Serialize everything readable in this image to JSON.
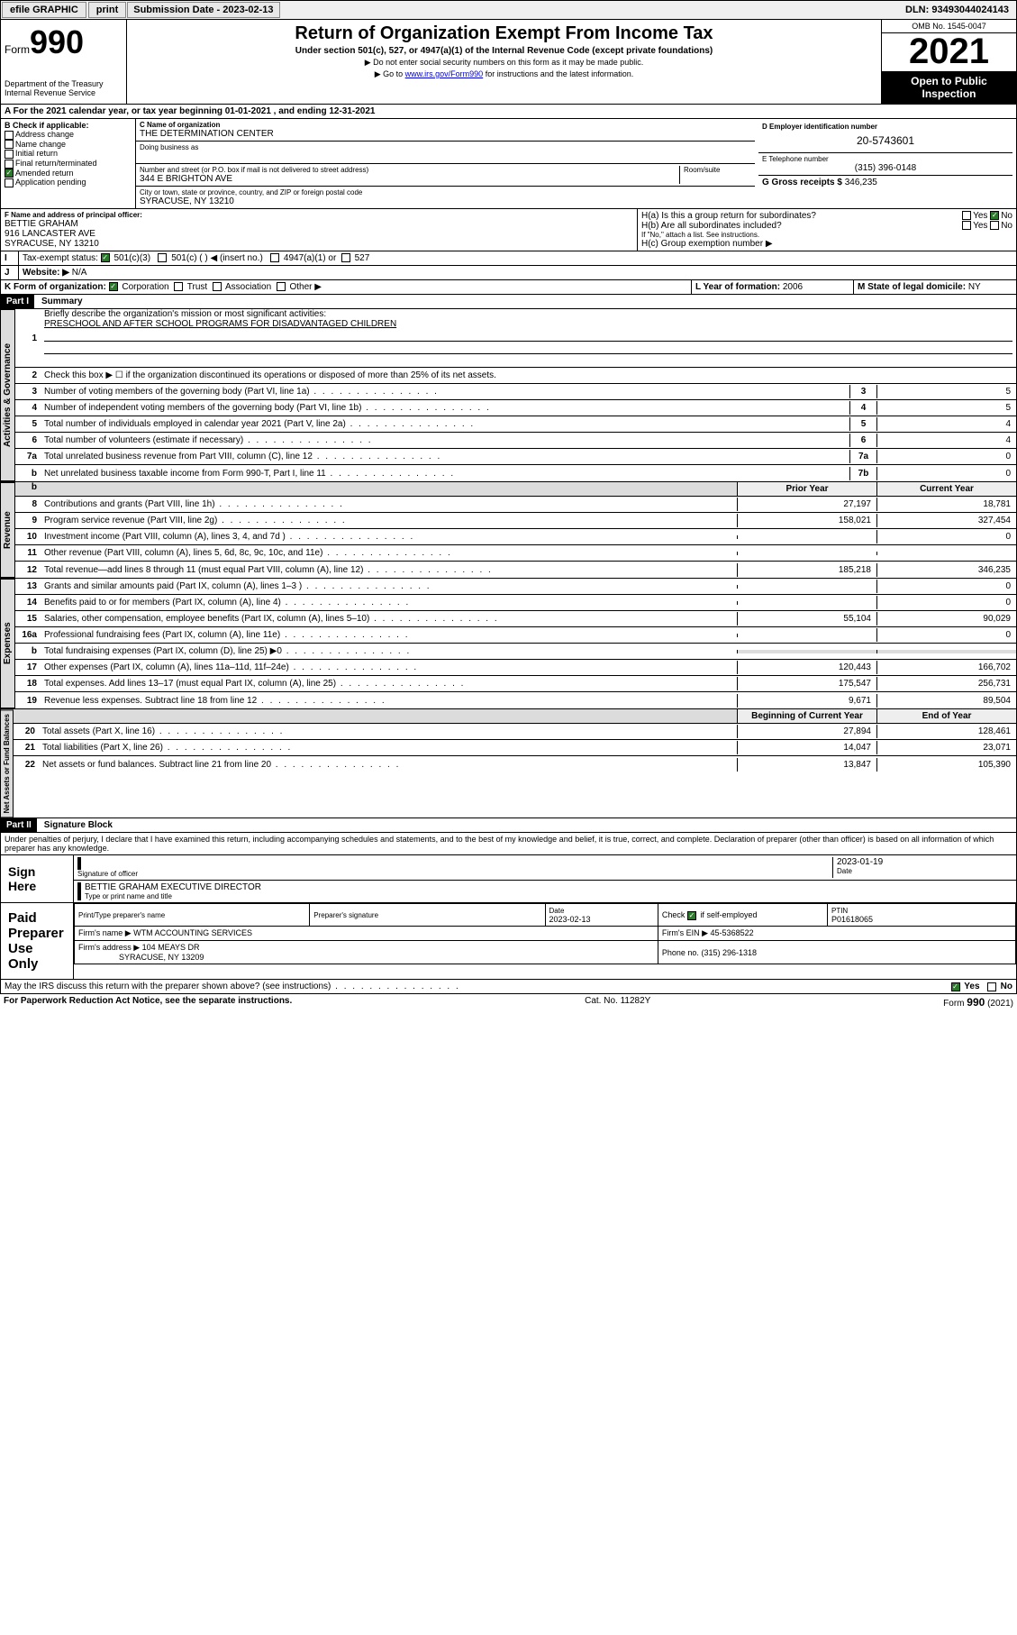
{
  "topbar": {
    "efile": "efile GRAPHIC",
    "print": "print",
    "subdate_label": "Submission Date - 2023-02-13",
    "dln": "DLN: 93493044024143"
  },
  "header": {
    "form_label": "Form",
    "form_number": "990",
    "title": "Return of Organization Exempt From Income Tax",
    "subtitle": "Under section 501(c), 527, or 4947(a)(1) of the Internal Revenue Code (except private foundations)",
    "note1": "▶ Do not enter social security numbers on this form as it may be made public.",
    "note2_pre": "▶ Go to ",
    "note2_link": "www.irs.gov/Form990",
    "note2_post": " for instructions and the latest information.",
    "dept": "Department of the Treasury",
    "irs": "Internal Revenue Service",
    "omb": "OMB No. 1545-0047",
    "year": "2021",
    "open_public": "Open to Public Inspection"
  },
  "section_a": {
    "text": "For the 2021 calendar year, or tax year beginning 01-01-2021   , and ending 12-31-2021",
    "label_a": "A"
  },
  "section_b": {
    "label": "B Check if applicable:",
    "items": [
      "Address change",
      "Name change",
      "Initial return",
      "Final return/terminated",
      "Amended return",
      "Application pending"
    ],
    "checked_idx": 4
  },
  "section_c": {
    "label": "C Name of organization",
    "org_name": "THE DETERMINATION CENTER",
    "dba_label": "Doing business as",
    "addr_label": "Number and street (or P.O. box if mail is not delivered to street address)",
    "room_label": "Room/suite",
    "addr": "344 E BRIGHTON AVE",
    "city_label": "City or town, state or province, country, and ZIP or foreign postal code",
    "city": "SYRACUSE, NY  13210"
  },
  "section_d": {
    "label": "D Employer identification number",
    "ein": "20-5743601"
  },
  "section_e": {
    "label": "E Telephone number",
    "phone": "(315) 396-0148"
  },
  "section_g": {
    "label": "G Gross receipts $",
    "amount": "346,235"
  },
  "section_f": {
    "label": "F Name and address of principal officer:",
    "name": "BETTIE GRAHAM",
    "addr1": "916 LANCASTER AVE",
    "addr2": "SYRACUSE, NY  13210"
  },
  "section_h": {
    "ha_label": "H(a)  Is this a group return for subordinates?",
    "hb_label": "H(b)  Are all subordinates included?",
    "hb_note": "If \"No,\" attach a list. See instructions.",
    "hc_label": "H(c)  Group exemption number ▶",
    "yes": "Yes",
    "no": "No"
  },
  "section_i": {
    "label": "I",
    "tax_label": "Tax-exempt status:",
    "opt1": "501(c)(3)",
    "opt2": "501(c) (   ) ◀ (insert no.)",
    "opt3": "4947(a)(1) or",
    "opt4": "527"
  },
  "section_j": {
    "label": "J",
    "web_label": "Website: ▶",
    "website": "N/A"
  },
  "section_k": {
    "label": "K Form of organization:",
    "opts": [
      "Corporation",
      "Trust",
      "Association",
      "Other ▶"
    ]
  },
  "section_l": {
    "label": "L Year of formation:",
    "year": "2006"
  },
  "section_m": {
    "label": "M State of legal domicile:",
    "state": "NY"
  },
  "part1": {
    "header": "Part I",
    "title": "Summary",
    "line1_label": "Briefly describe the organization's mission or most significant activities:",
    "mission": "PRESCHOOL AND AFTER SCHOOL PROGRAMS FOR DISADVANTAGED CHILDREN",
    "line2": "Check this box ▶ ☐  if the organization discontinued its operations or disposed of more than 25% of its net assets.",
    "lines_gov": [
      {
        "n": "3",
        "desc": "Number of voting members of the governing body (Part VI, line 1a)",
        "box": "3",
        "val": "5"
      },
      {
        "n": "4",
        "desc": "Number of independent voting members of the governing body (Part VI, line 1b)",
        "box": "4",
        "val": "5"
      },
      {
        "n": "5",
        "desc": "Total number of individuals employed in calendar year 2021 (Part V, line 2a)",
        "box": "5",
        "val": "4"
      },
      {
        "n": "6",
        "desc": "Total number of volunteers (estimate if necessary)",
        "box": "6",
        "val": "4"
      },
      {
        "n": "7a",
        "desc": "Total unrelated business revenue from Part VIII, column (C), line 12",
        "box": "7a",
        "val": "0"
      },
      {
        "n": "b",
        "desc": "Net unrelated business taxable income from Form 990-T, Part I, line 11",
        "box": "7b",
        "val": "0"
      }
    ],
    "col_prior": "Prior Year",
    "col_current": "Current Year",
    "col_beg": "Beginning of Current Year",
    "col_end": "End of Year",
    "rev_lines": [
      {
        "n": "8",
        "desc": "Contributions and grants (Part VIII, line 1h)",
        "prior": "27,197",
        "curr": "18,781"
      },
      {
        "n": "9",
        "desc": "Program service revenue (Part VIII, line 2g)",
        "prior": "158,021",
        "curr": "327,454"
      },
      {
        "n": "10",
        "desc": "Investment income (Part VIII, column (A), lines 3, 4, and 7d )",
        "prior": "",
        "curr": "0"
      },
      {
        "n": "11",
        "desc": "Other revenue (Part VIII, column (A), lines 5, 6d, 8c, 9c, 10c, and 11e)",
        "prior": "",
        "curr": ""
      },
      {
        "n": "12",
        "desc": "Total revenue—add lines 8 through 11 (must equal Part VIII, column (A), line 12)",
        "prior": "185,218",
        "curr": "346,235"
      }
    ],
    "exp_lines": [
      {
        "n": "13",
        "desc": "Grants and similar amounts paid (Part IX, column (A), lines 1–3 )",
        "prior": "",
        "curr": "0"
      },
      {
        "n": "14",
        "desc": "Benefits paid to or for members (Part IX, column (A), line 4)",
        "prior": "",
        "curr": "0"
      },
      {
        "n": "15",
        "desc": "Salaries, other compensation, employee benefits (Part IX, column (A), lines 5–10)",
        "prior": "55,104",
        "curr": "90,029"
      },
      {
        "n": "16a",
        "desc": "Professional fundraising fees (Part IX, column (A), line 11e)",
        "prior": "",
        "curr": "0"
      },
      {
        "n": "b",
        "desc": "Total fundraising expenses (Part IX, column (D), line 25) ▶0",
        "prior": "shade",
        "curr": "shade"
      },
      {
        "n": "17",
        "desc": "Other expenses (Part IX, column (A), lines 11a–11d, 11f–24e)",
        "prior": "120,443",
        "curr": "166,702"
      },
      {
        "n": "18",
        "desc": "Total expenses. Add lines 13–17 (must equal Part IX, column (A), line 25)",
        "prior": "175,547",
        "curr": "256,731"
      },
      {
        "n": "19",
        "desc": "Revenue less expenses. Subtract line 18 from line 12",
        "prior": "9,671",
        "curr": "89,504"
      }
    ],
    "net_lines": [
      {
        "n": "20",
        "desc": "Total assets (Part X, line 16)",
        "prior": "27,894",
        "curr": "128,461"
      },
      {
        "n": "21",
        "desc": "Total liabilities (Part X, line 26)",
        "prior": "14,047",
        "curr": "23,071"
      },
      {
        "n": "22",
        "desc": "Net assets or fund balances. Subtract line 21 from line 20",
        "prior": "13,847",
        "curr": "105,390"
      }
    ],
    "vtab_gov": "Activities & Governance",
    "vtab_rev": "Revenue",
    "vtab_exp": "Expenses",
    "vtab_net": "Net Assets or Fund Balances"
  },
  "part2": {
    "header": "Part II",
    "title": "Signature Block",
    "declaration": "Under penalties of perjury, I declare that I have examined this return, including accompanying schedules and statements, and to the best of my knowledge and belief, it is true, correct, and complete. Declaration of preparer (other than officer) is based on all information of which preparer has any knowledge."
  },
  "sign": {
    "label": "Sign Here",
    "sig_officer": "Signature of officer",
    "date_label": "Date",
    "date": "2023-01-19",
    "name_title": "BETTIE GRAHAM  EXECUTIVE DIRECTOR",
    "type_label": "Type or print name and title"
  },
  "paid": {
    "label": "Paid Preparer Use Only",
    "col1": "Print/Type preparer's name",
    "col2": "Preparer's signature",
    "col3": "Date",
    "date": "2023-02-13",
    "check_label": "Check",
    "self_emp": "if self-employed",
    "ptin_label": "PTIN",
    "ptin": "P01618065",
    "firm_name_label": "Firm's name    ▶",
    "firm_name": "WTM ACCOUNTING SERVICES",
    "firm_ein_label": "Firm's EIN ▶",
    "firm_ein": "45-5368522",
    "firm_addr_label": "Firm's address ▶",
    "firm_addr1": "104 MEAYS DR",
    "firm_addr2": "SYRACUSE, NY  13209",
    "phone_label": "Phone no.",
    "phone": "(315) 296-1318"
  },
  "footer": {
    "discuss": "May the IRS discuss this return with the preparer shown above? (see instructions)",
    "yes": "Yes",
    "no": "No",
    "paperwork": "For Paperwork Reduction Act Notice, see the separate instructions.",
    "cat": "Cat. No. 11282Y",
    "form": "Form 990 (2021)"
  }
}
